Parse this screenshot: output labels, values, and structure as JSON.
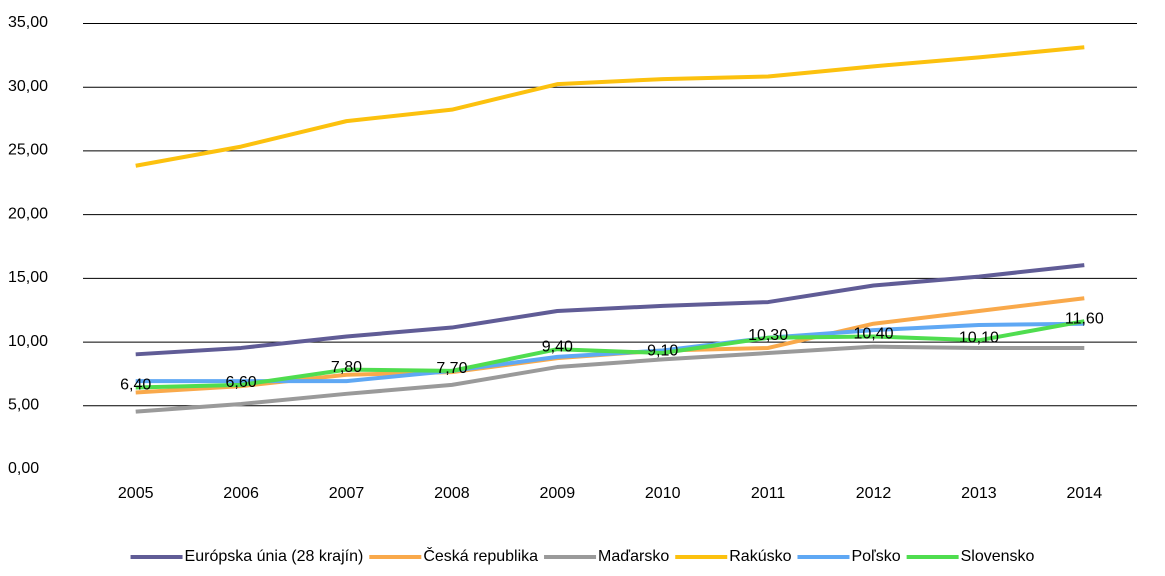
{
  "chart_data": {
    "type": "line",
    "categories": [
      "2005",
      "2006",
      "2007",
      "2008",
      "2009",
      "2010",
      "2011",
      "2012",
      "2013",
      "2014"
    ],
    "series": [
      {
        "name": "Európska únia (28 krajín)",
        "color": "#605c96",
        "values": [
          9.0,
          9.5,
          10.4,
          11.1,
          12.4,
          12.8,
          13.1,
          14.4,
          15.1,
          16.0
        ]
      },
      {
        "name": "Česká republika",
        "color": "#f9a94b",
        "values": [
          6.0,
          6.5,
          7.4,
          7.6,
          8.7,
          9.3,
          9.5,
          11.4,
          12.4,
          13.4
        ]
      },
      {
        "name": "Maďarsko",
        "color": "#9a9a9a",
        "values": [
          4.5,
          5.1,
          5.9,
          6.6,
          8.0,
          8.6,
          9.1,
          9.6,
          9.5,
          9.5
        ]
      },
      {
        "name": "Rakúsko",
        "color": "#fcc10e",
        "values": [
          23.8,
          25.3,
          27.3,
          28.2,
          30.2,
          30.6,
          30.8,
          31.6,
          32.3,
          33.1
        ]
      },
      {
        "name": "Poľsko",
        "color": "#5fa8f4",
        "values": [
          6.9,
          6.9,
          6.9,
          7.7,
          8.8,
          9.3,
          10.3,
          10.9,
          11.3,
          11.4
        ]
      },
      {
        "name": "Slovensko",
        "color": "#4fdd4f",
        "values": [
          6.4,
          6.6,
          7.8,
          7.7,
          9.4,
          9.1,
          10.3,
          10.4,
          10.1,
          11.6
        ],
        "value_labels": [
          "6,40",
          "6,60",
          "7,80",
          "7,70",
          "9,40",
          "9,10",
          "10,30",
          "10,40",
          "10,10",
          "11,60"
        ]
      }
    ],
    "ylim": [
      0,
      35
    ],
    "yticks": [
      {
        "value": 0,
        "label": "0,00"
      },
      {
        "value": 5,
        "label": "5,00"
      },
      {
        "value": 10,
        "label": "10,00"
      },
      {
        "value": 15,
        "label": "15,00"
      },
      {
        "value": 20,
        "label": "20,00"
      },
      {
        "value": 25,
        "label": "25,00"
      },
      {
        "value": 30,
        "label": "30,00"
      },
      {
        "value": 35,
        "label": "35,00"
      }
    ],
    "grid": true,
    "legend": "bottom"
  }
}
